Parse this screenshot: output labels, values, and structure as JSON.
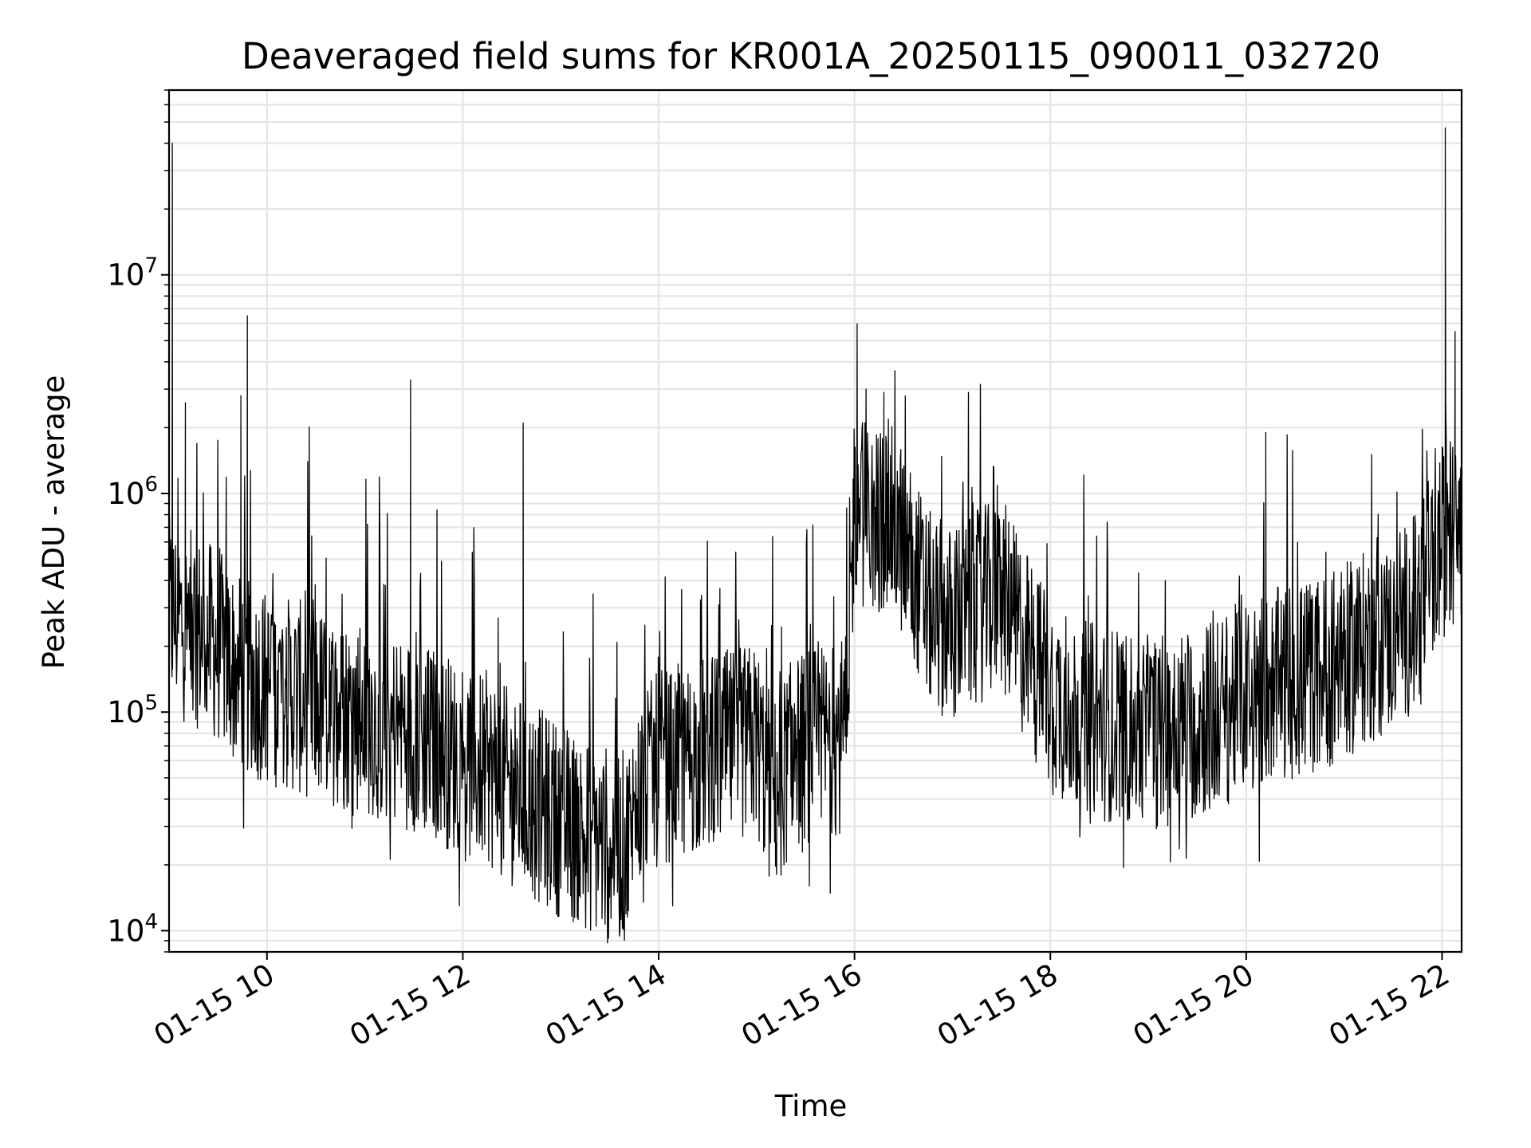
{
  "chart_data": {
    "type": "line",
    "title": "Deaveraged field sums for KR001A_20250115_090011_032720",
    "xlabel": "Time",
    "ylabel": "Peak ADU - average",
    "y_scale": "log",
    "ylim": [
      8000,
      70000000
    ],
    "xlim": [
      "2025-01-15 09:00",
      "2025-01-15 22:12"
    ],
    "grid": true,
    "line_color": "#000000",
    "grid_color": "#e5e5e5",
    "x_ticks": [
      {
        "value": "2025-01-15 10:00",
        "label": "01-15 10"
      },
      {
        "value": "2025-01-15 12:00",
        "label": "01-15 12"
      },
      {
        "value": "2025-01-15 14:00",
        "label": "01-15 14"
      },
      {
        "value": "2025-01-15 16:00",
        "label": "01-15 16"
      },
      {
        "value": "2025-01-15 18:00",
        "label": "01-15 18"
      },
      {
        "value": "2025-01-15 20:00",
        "label": "01-15 20"
      },
      {
        "value": "2025-01-15 22:00",
        "label": "01-15 22"
      }
    ],
    "y_ticks": [
      {
        "value": 10000,
        "base": "10",
        "exp": "4"
      },
      {
        "value": 100000,
        "base": "10",
        "exp": "5"
      },
      {
        "value": 1000000,
        "base": "10",
        "exp": "6"
      },
      {
        "value": 10000000,
        "base": "10",
        "exp": "7"
      }
    ],
    "series": [
      {
        "x": [
          "2025-01-15 09:00",
          "2025-01-15 09:10",
          "2025-01-15 09:20",
          "2025-01-15 09:30",
          "2025-01-15 09:40",
          "2025-01-15 09:50",
          "2025-01-15 10:00",
          "2025-01-15 10:15",
          "2025-01-15 10:30",
          "2025-01-15 10:45",
          "2025-01-15 11:00",
          "2025-01-15 11:15",
          "2025-01-15 11:30",
          "2025-01-15 11:45",
          "2025-01-15 12:00",
          "2025-01-15 12:15",
          "2025-01-15 12:30",
          "2025-01-15 12:45",
          "2025-01-15 13:00",
          "2025-01-15 13:15",
          "2025-01-15 13:30",
          "2025-01-15 13:40",
          "2025-01-15 13:50",
          "2025-01-15 14:00",
          "2025-01-15 14:15",
          "2025-01-15 14:30",
          "2025-01-15 14:45",
          "2025-01-15 15:00",
          "2025-01-15 15:10",
          "2025-01-15 15:20",
          "2025-01-15 15:30",
          "2025-01-15 15:45",
          "2025-01-15 15:55",
          "2025-01-15 16:00",
          "2025-01-15 16:10",
          "2025-01-15 16:20",
          "2025-01-15 16:30",
          "2025-01-15 16:45",
          "2025-01-15 17:00",
          "2025-01-15 17:15",
          "2025-01-15 17:30",
          "2025-01-15 17:45",
          "2025-01-15 18:00",
          "2025-01-15 18:15",
          "2025-01-15 18:30",
          "2025-01-15 18:45",
          "2025-01-15 19:00",
          "2025-01-15 19:15",
          "2025-01-15 19:30",
          "2025-01-15 19:45",
          "2025-01-15 20:00",
          "2025-01-15 20:15",
          "2025-01-15 20:30",
          "2025-01-15 20:45",
          "2025-01-15 21:00",
          "2025-01-15 21:15",
          "2025-01-15 21:30",
          "2025-01-15 21:45",
          "2025-01-15 22:00",
          "2025-01-15 22:12"
        ],
        "y": [
          280000,
          250000,
          230000,
          200000,
          160000,
          140000,
          130000,
          120000,
          110000,
          100000,
          95000,
          85000,
          80000,
          70000,
          60000,
          55000,
          45000,
          38000,
          32000,
          28000,
          25000,
          24000,
          45000,
          55000,
          60000,
          65000,
          70000,
          75000,
          40000,
          60000,
          70000,
          75000,
          80000,
          1000000,
          700000,
          800000,
          600000,
          300000,
          250000,
          300000,
          350000,
          200000,
          120000,
          100000,
          90000,
          85000,
          80000,
          85000,
          90000,
          100000,
          120000,
          130000,
          140000,
          150000,
          170000,
          200000,
          220000,
          300000,
          600000,
          800000
        ]
      }
    ],
    "spikes": [
      {
        "x": "2025-01-15 09:02",
        "y": 40000000
      },
      {
        "x": "2025-01-15 09:10",
        "y": 2600000
      },
      {
        "x": "2025-01-15 09:44",
        "y": 2800000
      },
      {
        "x": "2025-01-15 09:48",
        "y": 6500000
      },
      {
        "x": "2025-01-15 11:28",
        "y": 3300000
      },
      {
        "x": "2025-01-15 12:37",
        "y": 2100000
      },
      {
        "x": "2025-01-15 16:18",
        "y": 2900000
      },
      {
        "x": "2025-01-15 20:12",
        "y": 1900000
      },
      {
        "x": "2025-01-15 22:02",
        "y": 47000000
      },
      {
        "x": "2025-01-15 22:08",
        "y": 5500000
      }
    ]
  }
}
